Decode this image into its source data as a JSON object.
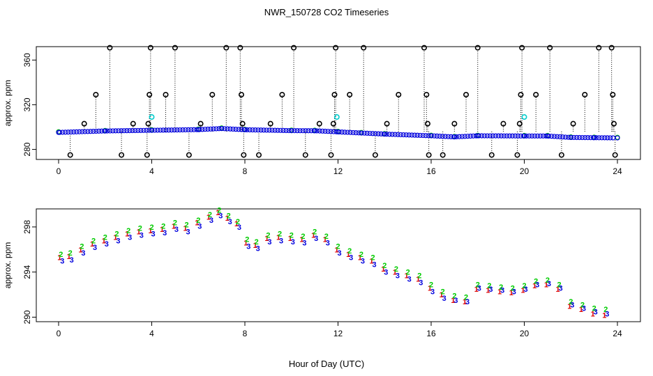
{
  "figure": {
    "title": "NWR_150728  CO2 Timeseries",
    "xlabel": "Hour of Day (UTC)"
  },
  "colors": {
    "outlier": "#000000",
    "flag": "#00cccc",
    "series_1": "#dd0000",
    "series_2": "#00cc00",
    "series_3": "#0000dd"
  },
  "chart_data": [
    {
      "type": "scatter",
      "panel": "top",
      "ylabel": "approx. ppm",
      "xlim": [
        0,
        24
      ],
      "ylim": [
        271,
        372
      ],
      "xticks": [
        0,
        4,
        8,
        12,
        16,
        20,
        24
      ],
      "yticks": [
        280,
        320,
        360
      ],
      "series": [
        {
          "name": "1",
          "symbol": "1",
          "x": [
            0,
            2,
            4,
            6,
            7,
            8,
            10,
            11,
            12,
            13,
            14,
            16,
            17,
            18,
            20,
            21,
            22,
            23,
            24
          ],
          "y": [
            295.5,
            296.8,
            297.4,
            298.0,
            299.0,
            297.9,
            297.1,
            297.0,
            296.0,
            295.0,
            294.0,
            292.5,
            291.5,
            292.5,
            292.3,
            292.3,
            291.0,
            290.8,
            290.6
          ]
        },
        {
          "name": "2",
          "symbol": "2",
          "x": [
            0,
            2,
            4,
            6,
            7,
            8,
            10,
            11,
            12,
            13,
            14,
            16,
            17,
            18,
            20,
            21,
            22,
            23,
            24
          ],
          "y": [
            295.8,
            297.0,
            297.6,
            298.2,
            299.2,
            298.0,
            297.3,
            297.2,
            296.2,
            295.2,
            294.2,
            292.7,
            291.7,
            292.7,
            292.5,
            292.5,
            291.2,
            291.0,
            290.8
          ]
        },
        {
          "name": "3",
          "symbol": "3",
          "x": [
            0,
            2,
            4,
            6,
            7,
            8,
            10,
            11,
            12,
            13,
            14,
            16,
            17,
            18,
            20,
            21,
            22,
            23,
            24
          ],
          "y": [
            295.2,
            296.5,
            297.1,
            297.7,
            298.7,
            297.6,
            296.8,
            296.7,
            295.7,
            294.7,
            293.7,
            292.2,
            291.2,
            292.2,
            292.0,
            292.0,
            290.7,
            290.5,
            290.3
          ]
        }
      ],
      "outliers": {
        "symbol": "o",
        "x": [
          0.5,
          1.1,
          1.6,
          2.2,
          2.7,
          3.2,
          3.8,
          3.85,
          3.9,
          3.95,
          4.6,
          5.0,
          5.6,
          6.1,
          6.6,
          7.2,
          7.8,
          7.85,
          7.9,
          7.95,
          8.6,
          9.1,
          9.6,
          10.1,
          10.6,
          11.2,
          11.7,
          11.8,
          11.85,
          11.9,
          12.5,
          13.1,
          13.6,
          14.1,
          14.6,
          15.7,
          15.8,
          15.85,
          15.9,
          16.5,
          17.0,
          17.5,
          18.0,
          18.6,
          19.1,
          19.7,
          19.8,
          19.85,
          19.9,
          20.5,
          21.1,
          21.6,
          22.1,
          22.6,
          23.2,
          23.75,
          23.8,
          23.85,
          23.9
        ],
        "y": [
          275,
          303,
          329,
          371,
          275,
          303,
          275,
          303,
          329,
          371,
          329,
          371,
          275,
          303,
          329,
          371,
          371,
          329,
          303,
          275,
          275,
          303,
          329,
          371,
          275,
          303,
          275,
          303,
          329,
          371,
          329,
          371,
          275,
          303,
          329,
          371,
          329,
          303,
          275,
          275,
          303,
          329,
          371,
          275,
          303,
          275,
          303,
          329,
          371,
          329,
          371,
          275,
          303,
          329,
          371,
          371,
          329,
          303,
          275
        ]
      },
      "flagged": {
        "symbol": "o",
        "x": [
          4.0,
          11.95,
          20.0
        ],
        "y": [
          309,
          309,
          309
        ]
      }
    },
    {
      "type": "scatter",
      "panel": "bottom",
      "ylabel": "approx. ppm",
      "xlim": [
        0,
        24
      ],
      "ylim": [
        289.6,
        299.6
      ],
      "xticks": [
        0,
        4,
        8,
        12,
        16,
        20,
        24
      ],
      "yticks": [
        290,
        294,
        298
      ],
      "series": [
        {
          "name": "1",
          "symbol": "1",
          "x": [
            0.1,
            0.5,
            1,
            1.5,
            2,
            2.5,
            3,
            3.5,
            4,
            4.5,
            5,
            5.5,
            6,
            6.5,
            6.9,
            7.3,
            7.7,
            8.1,
            8.5,
            9,
            9.5,
            10,
            10.5,
            11,
            11.5,
            12,
            12.5,
            13,
            13.5,
            14,
            14.5,
            15,
            15.5,
            16,
            16.5,
            17,
            17.5,
            18,
            18.5,
            19,
            19.5,
            20,
            20.5,
            21,
            21.5,
            22,
            22.5,
            23,
            23.5
          ],
          "y": [
            295.3,
            295.4,
            296.0,
            296.5,
            296.8,
            297.1,
            297.4,
            297.6,
            297.7,
            297.8,
            298.1,
            297.9,
            298.4,
            298.9,
            299.3,
            298.8,
            298.3,
            296.6,
            296.4,
            297.0,
            297.1,
            297.0,
            296.9,
            297.3,
            296.9,
            296.0,
            295.6,
            295.3,
            295.0,
            294.3,
            294.0,
            293.7,
            293.4,
            292.6,
            292.0,
            291.5,
            291.4,
            292.5,
            292.4,
            292.3,
            292.2,
            292.4,
            292.8,
            292.9,
            292.5,
            291.0,
            290.7,
            290.3,
            290.2
          ]
        },
        {
          "name": "2",
          "symbol": "2",
          "x": [
            0.1,
            0.5,
            1,
            1.5,
            2,
            2.5,
            3,
            3.5,
            4,
            4.5,
            5,
            5.5,
            6,
            6.5,
            6.9,
            7.3,
            7.7,
            8.1,
            8.5,
            9,
            9.5,
            10,
            10.5,
            11,
            11.5,
            12,
            12.5,
            13,
            13.5,
            14,
            14.5,
            15,
            15.5,
            16,
            16.5,
            17,
            17.5,
            18,
            18.5,
            19,
            19.5,
            20,
            20.5,
            21,
            21.5,
            22,
            22.5,
            23,
            23.5
          ],
          "y": [
            295.6,
            295.7,
            296.3,
            296.8,
            297.1,
            297.4,
            297.7,
            297.9,
            298.0,
            298.1,
            298.4,
            298.2,
            298.6,
            299.1,
            299.5,
            299.0,
            298.5,
            296.9,
            296.7,
            297.3,
            297.4,
            297.3,
            297.2,
            297.6,
            297.2,
            296.3,
            295.9,
            295.6,
            295.3,
            294.6,
            294.3,
            294.0,
            293.7,
            292.9,
            292.3,
            291.9,
            291.8,
            292.9,
            292.8,
            292.7,
            292.6,
            292.8,
            293.2,
            293.3,
            292.9,
            291.4,
            291.1,
            290.8,
            290.7
          ]
        },
        {
          "name": "3",
          "symbol": "3",
          "x": [
            0.1,
            0.5,
            1,
            1.5,
            2,
            2.5,
            3,
            3.5,
            4,
            4.5,
            5,
            5.5,
            6,
            6.5,
            6.9,
            7.3,
            7.7,
            8.1,
            8.5,
            9,
            9.5,
            10,
            10.5,
            11,
            11.5,
            12,
            12.5,
            13,
            13.5,
            14,
            14.5,
            15,
            15.5,
            16,
            16.5,
            17,
            17.5,
            18,
            18.5,
            19,
            19.5,
            20,
            20.5,
            21,
            21.5,
            22,
            22.5,
            23,
            23.5
          ],
          "y": [
            295.0,
            295.1,
            295.7,
            296.2,
            296.5,
            296.8,
            297.1,
            297.3,
            297.4,
            297.5,
            297.8,
            297.6,
            298.1,
            298.6,
            299.0,
            298.5,
            298.0,
            296.3,
            296.1,
            296.7,
            296.8,
            296.7,
            296.6,
            297.0,
            296.6,
            295.7,
            295.3,
            295.0,
            294.7,
            294.0,
            293.7,
            293.4,
            293.1,
            292.3,
            291.7,
            291.5,
            291.4,
            292.6,
            292.5,
            292.4,
            292.3,
            292.5,
            292.9,
            293.0,
            292.6,
            291.1,
            290.8,
            290.5,
            290.3
          ]
        }
      ]
    }
  ]
}
